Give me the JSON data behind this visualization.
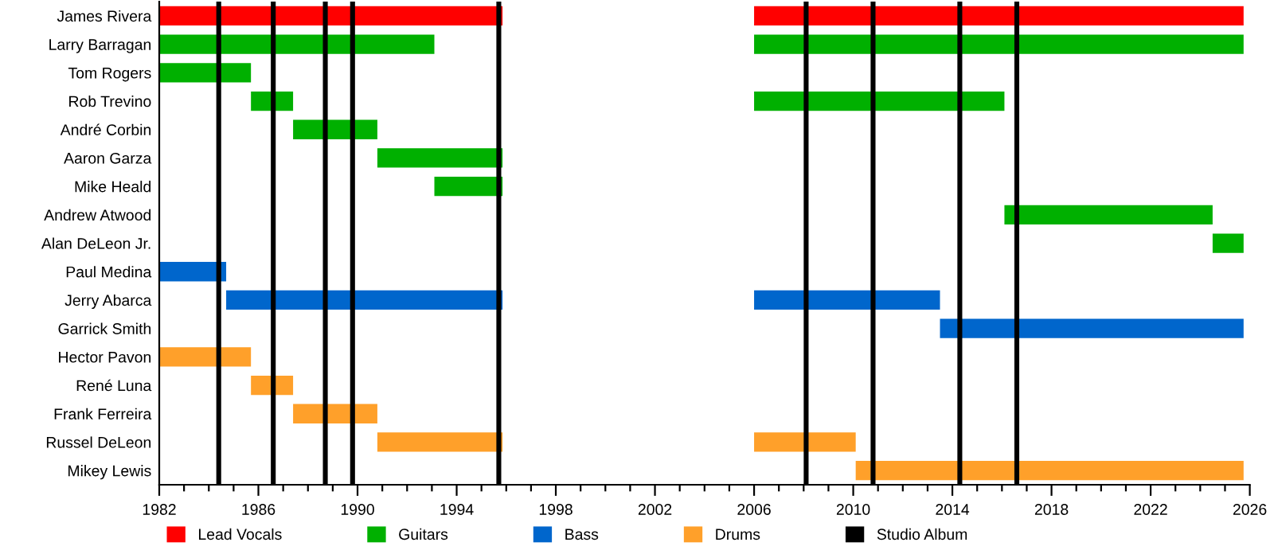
{
  "chart_data": {
    "type": "bar",
    "orientation": "horizontal",
    "categories": [
      "James Rivera",
      "Larry Barragan",
      "Tom Rogers",
      "Rob Trevino",
      "André Corbin",
      "Aaron Garza",
      "Mike Heald",
      "Andrew Atwood",
      "Alan DeLeon Jr.",
      "Paul Medina",
      "Jerry Abarca",
      "Garrick Smith",
      "Hector Pavon",
      "René Luna",
      "Frank Ferreira",
      "Russel DeLeon",
      "Mikey Lewis"
    ],
    "series": [
      {
        "name": "Lead Vocals",
        "color": "#ff0000",
        "values": [
          13.85,
          null,
          null,
          null,
          null,
          null,
          null,
          null,
          null,
          null,
          null,
          null,
          null,
          null,
          null,
          null,
          null
        ],
        "base": [
          1982,
          null,
          null,
          null,
          null,
          null,
          null,
          null,
          null,
          null,
          null,
          null,
          null,
          null,
          null,
          null,
          null
        ]
      },
      {
        "color": "#ff0000",
        "values": [
          19.75,
          null,
          null,
          null,
          null,
          null,
          null,
          null,
          null,
          null,
          null,
          null,
          null,
          null,
          null,
          null,
          null
        ],
        "base": [
          2006,
          null,
          null,
          null,
          null,
          null,
          null,
          null,
          null,
          null,
          null,
          null,
          null,
          null,
          null,
          null,
          null
        ]
      },
      {
        "name": "Guitars",
        "color": "#00b000",
        "values": [
          null,
          11.1,
          3.7,
          1.7,
          3.4,
          5.05,
          2.75,
          null,
          null,
          null,
          null,
          null,
          null,
          null,
          null,
          null,
          null
        ],
        "base": [
          null,
          1982,
          1982,
          1985.7,
          1987.4,
          1990.8,
          1993.1,
          null,
          null,
          null,
          null,
          null,
          null,
          null,
          null,
          null,
          null
        ]
      },
      {
        "color": "#00b000",
        "values": [
          null,
          19.75,
          null,
          10.1,
          null,
          null,
          null,
          8.4,
          1.25,
          null,
          null,
          null,
          null,
          null,
          null,
          null,
          null
        ],
        "base": [
          null,
          2006,
          null,
          2006,
          null,
          null,
          null,
          2016.1,
          2024.5,
          null,
          null,
          null,
          null,
          null,
          null,
          null,
          null
        ]
      },
      {
        "name": "Bass",
        "color": "#0066cc",
        "values": [
          null,
          null,
          null,
          null,
          null,
          null,
          null,
          null,
          null,
          2.7,
          11.15,
          null,
          null,
          null,
          null,
          null,
          null
        ],
        "base": [
          null,
          null,
          null,
          null,
          null,
          null,
          null,
          null,
          null,
          1982,
          1984.7,
          null,
          null,
          null,
          null,
          null,
          null
        ]
      },
      {
        "color": "#0066cc",
        "values": [
          null,
          null,
          null,
          null,
          null,
          null,
          null,
          null,
          null,
          null,
          7.5,
          12.25,
          null,
          null,
          null,
          null,
          null
        ],
        "base": [
          null,
          null,
          null,
          null,
          null,
          null,
          null,
          null,
          null,
          null,
          2006,
          2013.5,
          null,
          null,
          null,
          null,
          null
        ]
      },
      {
        "name": "Drums",
        "color": "#ffa02a",
        "values": [
          null,
          null,
          null,
          null,
          null,
          null,
          null,
          null,
          null,
          null,
          null,
          null,
          3.7,
          1.7,
          3.4,
          5.05,
          null
        ],
        "base": [
          null,
          null,
          null,
          null,
          null,
          null,
          null,
          null,
          null,
          null,
          null,
          null,
          1982,
          1985.7,
          1987.4,
          1990.8,
          null
        ]
      },
      {
        "color": "#ffa02a",
        "values": [
          null,
          null,
          null,
          null,
          null,
          null,
          null,
          null,
          null,
          null,
          null,
          null,
          null,
          null,
          null,
          4.1,
          15.65
        ],
        "base": [
          null,
          null,
          null,
          null,
          null,
          null,
          null,
          null,
          null,
          null,
          null,
          null,
          null,
          null,
          null,
          2006,
          2010.1
        ]
      }
    ],
    "ref_lines": [
      {
        "axis": "x",
        "value": 1984.4,
        "label": "Studio Album",
        "color": "#000000"
      },
      {
        "axis": "x",
        "value": 1986.6,
        "color": "#000000"
      },
      {
        "axis": "x",
        "value": 1988.7,
        "color": "#000000"
      },
      {
        "axis": "x",
        "value": 1989.8,
        "color": "#000000"
      },
      {
        "axis": "x",
        "value": 1995.7,
        "color": "#000000"
      },
      {
        "axis": "x",
        "value": 2008.1,
        "color": "#000000"
      },
      {
        "axis": "x",
        "value": 2010.8,
        "color": "#000000"
      },
      {
        "axis": "x",
        "value": 2014.3,
        "color": "#000000"
      },
      {
        "axis": "x",
        "value": 2016.6,
        "color": "#000000"
      }
    ],
    "xlim": [
      1982,
      2026
    ],
    "xticks": [
      1982,
      {
        "value": 1983,
        "label": null
      },
      {
        "value": 1984,
        "label": null
      },
      {
        "value": 1985,
        "label": null
      },
      1986,
      {
        "value": 1987,
        "label": null
      },
      {
        "value": 1988,
        "label": null
      },
      {
        "value": 1989,
        "label": null
      },
      1990,
      {
        "value": 1991,
        "label": null
      },
      {
        "value": 1992,
        "label": null
      },
      {
        "value": 1993,
        "label": null
      },
      1994,
      {
        "value": 1995,
        "label": null
      },
      {
        "value": 1996,
        "label": null
      },
      {
        "value": 1997,
        "label": null
      },
      1998,
      {
        "value": 1999,
        "label": null
      },
      {
        "value": 2000,
        "label": null
      },
      {
        "value": 2001,
        "label": null
      },
      2002,
      {
        "value": 2003,
        "label": null
      },
      {
        "value": 2004,
        "label": null
      },
      {
        "value": 2005,
        "label": null
      },
      2006,
      {
        "value": 2007,
        "label": null
      },
      {
        "value": 2008,
        "label": null
      },
      {
        "value": 2009,
        "label": null
      },
      2010,
      {
        "value": 2011,
        "label": null
      },
      {
        "value": 2012,
        "label": null
      },
      {
        "value": 2013,
        "label": null
      },
      2014,
      {
        "value": 2015,
        "label": null
      },
      {
        "value": 2016,
        "label": null
      },
      {
        "value": 2017,
        "label": null
      },
      2018,
      {
        "value": 2019,
        "label": null
      },
      {
        "value": 2020,
        "label": null
      },
      {
        "value": 2021,
        "label": null
      },
      2022,
      {
        "value": 2023,
        "label": null
      },
      {
        "value": 2024,
        "label": null
      },
      {
        "value": 2025,
        "label": null
      },
      2026
    ],
    "grid": false,
    "legend": "bottom"
  }
}
